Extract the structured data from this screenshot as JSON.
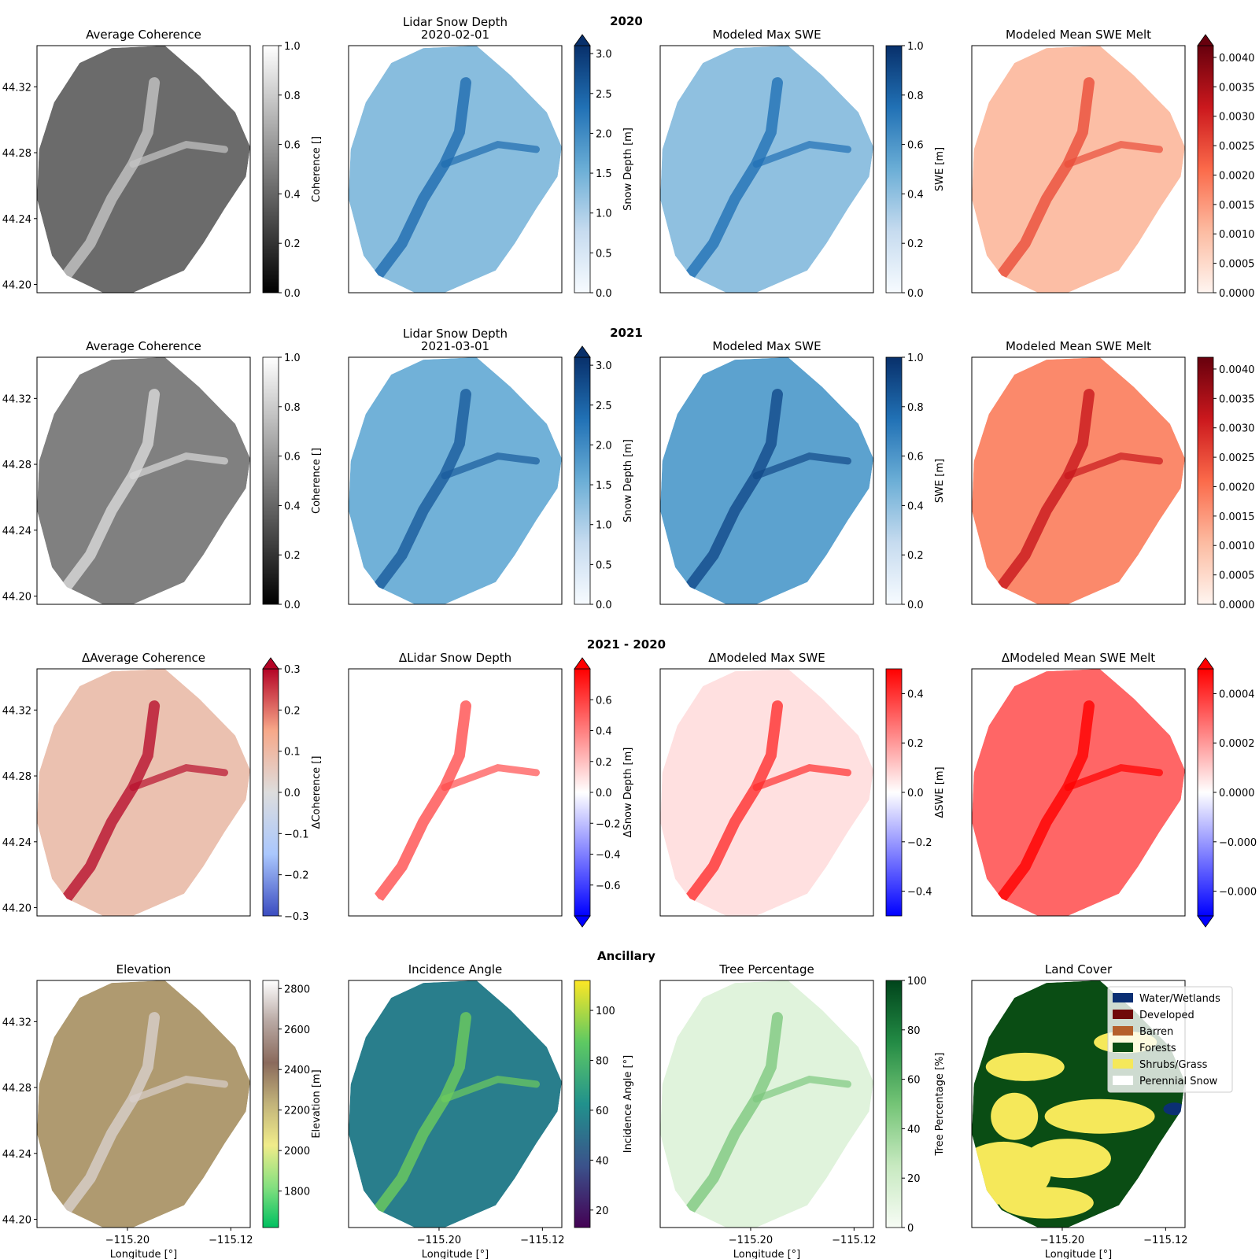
{
  "rows": [
    {
      "title": "2020",
      "panels": [
        {
          "title": "Average Coherence",
          "cbar_label": "Coherence []",
          "ticks": [
            "0.0",
            "0.2",
            "0.4",
            "0.6",
            "0.8",
            "1.0"
          ],
          "vmin": 0,
          "vmax": 1,
          "cmap": "Greys",
          "extend": "none",
          "mid_value": 0.42
        },
        {
          "title": "Lidar Snow Depth\n2020-02-01",
          "cbar_label": "Snow Depth [m]",
          "ticks": [
            "0.0",
            "0.5",
            "1.0",
            "1.5",
            "2.0",
            "2.5",
            "3.0"
          ],
          "vmin": 0,
          "vmax": 3.1,
          "cmap": "Blues",
          "extend": "max",
          "mid_value": 1.3
        },
        {
          "title": "Modeled Max SWE",
          "cbar_label": "SWE [m]",
          "ticks": [
            "0.0",
            "0.2",
            "0.4",
            "0.6",
            "0.8",
            "1.0"
          ],
          "vmin": 0,
          "vmax": 1,
          "cmap": "Blues",
          "extend": "none",
          "mid_value": 0.4
        },
        {
          "title": "Modeled Mean SWE Melt",
          "cbar_label": "",
          "ticks": [
            "0.0000",
            "0.0005",
            "0.0010",
            "0.0015",
            "0.0020",
            "0.0025",
            "0.0030",
            "0.0035",
            "0.0040"
          ],
          "vmin": 0,
          "vmax": 0.0042,
          "cmap": "Reds",
          "extend": "max",
          "mid_value": 0.001
        }
      ]
    },
    {
      "title": "2021",
      "panels": [
        {
          "title": "Average Coherence",
          "cbar_label": "Coherence []",
          "ticks": [
            "0.0",
            "0.2",
            "0.4",
            "0.6",
            "0.8",
            "1.0"
          ],
          "vmin": 0,
          "vmax": 1,
          "cmap": "Greys",
          "extend": "none",
          "mid_value": 0.5
        },
        {
          "title": "Lidar Snow Depth\n2021-03-01",
          "cbar_label": "Snow Depth [m]",
          "ticks": [
            "0.0",
            "0.5",
            "1.0",
            "1.5",
            "2.0",
            "2.5",
            "3.0"
          ],
          "vmin": 0,
          "vmax": 3.1,
          "cmap": "Blues",
          "extend": "max",
          "mid_value": 1.5
        },
        {
          "title": "Modeled Max SWE",
          "cbar_label": "SWE [m]",
          "ticks": [
            "0.0",
            "0.2",
            "0.4",
            "0.6",
            "0.8",
            "1.0"
          ],
          "vmin": 0,
          "vmax": 1,
          "cmap": "Blues",
          "extend": "none",
          "mid_value": 0.55
        },
        {
          "title": "Modeled Mean SWE Melt",
          "cbar_label": "",
          "ticks": [
            "0.0000",
            "0.0005",
            "0.0010",
            "0.0015",
            "0.0020",
            "0.0025",
            "0.0030",
            "0.0035",
            "0.0040"
          ],
          "vmin": 0,
          "vmax": 0.0042,
          "cmap": "Reds",
          "extend": "none",
          "mid_value": 0.0017
        }
      ]
    },
    {
      "title": "2021 - 2020",
      "panels": [
        {
          "title": "ΔAverage Coherence",
          "cbar_label": "ΔCoherence []",
          "ticks": [
            "−0.3",
            "−0.2",
            "−0.1",
            "0.0",
            "0.1",
            "0.2",
            "0.3"
          ],
          "vmin": -0.3,
          "vmax": 0.3,
          "cmap": "coolwarm",
          "extend": "max",
          "mid_value": 0.08
        },
        {
          "title": "ΔLidar Snow Depth",
          "cbar_label": "ΔSnow Depth [m]",
          "ticks": [
            "−0.6",
            "−0.4",
            "−0.2",
            "0.0",
            "0.2",
            "0.4",
            "0.6"
          ],
          "vmin": -0.8,
          "vmax": 0.8,
          "cmap": "bwr",
          "extend": "both",
          "mid_value": 0.0
        },
        {
          "title": "ΔModeled Max SWE",
          "cbar_label": "ΔSWE [m]",
          "ticks": [
            "−0.4",
            "−0.2",
            "0.0",
            "0.2",
            "0.4"
          ],
          "vmin": -0.5,
          "vmax": 0.5,
          "cmap": "bwr",
          "extend": "none",
          "mid_value": 0.06
        },
        {
          "title": "ΔModeled Mean SWE Melt",
          "cbar_label": "",
          "ticks": [
            "−0.000",
            "−0.000",
            "0.0000",
            "0.0002",
            "0.0004"
          ],
          "tick_values": [
            -0.0004,
            -0.0002,
            0,
            0.0002,
            0.0004
          ],
          "vmin": -0.0005,
          "vmax": 0.0005,
          "cmap": "bwr",
          "extend": "both",
          "mid_value": 0.0003
        }
      ]
    },
    {
      "title": "Ancillary",
      "panels": [
        {
          "title": "Elevation",
          "cbar_label": "Elevation [m]",
          "ticks": [
            "1800",
            "2000",
            "2200",
            "2400",
            "2600",
            "2800"
          ],
          "vmin": 1620,
          "vmax": 2840,
          "cmap": "terrain",
          "extend": "none",
          "mid_value": 2300
        },
        {
          "title": "Incidence Angle",
          "cbar_label": "Incidence Angle [°]",
          "ticks": [
            "20",
            "40",
            "60",
            "80",
            "100"
          ],
          "vmin": 13,
          "vmax": 112,
          "cmap": "viridis",
          "extend": "none",
          "mid_value": 55
        },
        {
          "title": "Tree Percentage",
          "cbar_label": "Tree Percentage [%]",
          "ticks": [
            "0",
            "20",
            "40",
            "60",
            "80",
            "100"
          ],
          "vmin": 0,
          "vmax": 100,
          "cmap": "Greens",
          "extend": "none",
          "mid_value": 12
        },
        {
          "title": "Land Cover",
          "cbar_label": "",
          "ticks": [],
          "cmap": "landcover",
          "extend": "none"
        }
      ]
    }
  ],
  "y_ticks": [
    "44.20",
    "44.24",
    "44.28",
    "44.32"
  ],
  "y_tick_values": [
    44.2,
    44.24,
    44.28,
    44.32
  ],
  "x_ticks": [
    "−115.20",
    "−115.12"
  ],
  "x_tick_values": [
    -115.2,
    -115.12
  ],
  "xlabel": "Longitude [°]",
  "chart_data": {
    "type": "heatmap",
    "layout": "4x4 grid of map panels",
    "lat_range": [
      44.195,
      44.345
    ],
    "lon_range": [
      -115.27,
      -115.105
    ],
    "x_ticks": [
      -115.2,
      -115.12
    ],
    "y_ticks": [
      44.2,
      44.24,
      44.28,
      44.32
    ],
    "xlabel": "Longitude [°]",
    "land_cover_legend": [
      {
        "label": "Water/Wetlands",
        "color": "#0b2f73"
      },
      {
        "label": "Developed",
        "color": "#700a0a"
      },
      {
        "label": "Barren",
        "color": "#b5602b"
      },
      {
        "label": "Forests",
        "color": "#0a4d14"
      },
      {
        "label": "Shrubs/Grass",
        "color": "#f5e85a"
      },
      {
        "label": "Perennial Snow",
        "color": "#ffffff"
      }
    ]
  }
}
